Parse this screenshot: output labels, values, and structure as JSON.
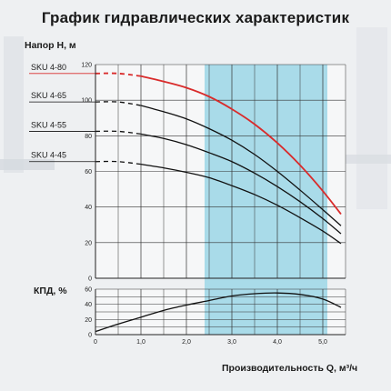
{
  "title": "График гидравлических характеристик",
  "chart_data": [
    {
      "type": "line",
      "ylabel": "Напор H, м",
      "xlabel": "Производительность Q, м³/ч",
      "xlim": [
        0,
        5.5
      ],
      "ylim": [
        0,
        120
      ],
      "x_ticks": [
        "0",
        "1,0",
        "2,0",
        "3,0",
        "4,0",
        "5,0"
      ],
      "y_ticks": [
        "0",
        "20",
        "40",
        "60",
        "80",
        "100",
        "120"
      ],
      "highlight_band": [
        2.4,
        5.1
      ],
      "highlight_color": "#a9dbe9",
      "grid": true,
      "series": [
        {
          "name": "SKU 4-80",
          "color": "#d92b2b",
          "x": [
            0.0,
            0.5,
            1.0,
            1.5,
            2.0,
            2.5,
            3.0,
            3.5,
            4.0,
            4.5,
            5.0,
            5.4
          ],
          "y": [
            115.0,
            115.0,
            113.5,
            110.5,
            107.0,
            102.0,
            95.0,
            86.5,
            76.0,
            63.5,
            49.0,
            36.0
          ],
          "dashed_until": 1.0
        },
        {
          "name": "SKU 4-65",
          "color": "#111111",
          "x": [
            0.0,
            0.5,
            1.0,
            1.5,
            2.0,
            2.5,
            3.0,
            3.5,
            4.0,
            4.5,
            5.0,
            5.4
          ],
          "y": [
            99.0,
            99.0,
            97.0,
            93.5,
            89.5,
            84.0,
            77.5,
            69.5,
            60.0,
            49.5,
            38.5,
            29.5
          ],
          "dashed_until": 1.0
        },
        {
          "name": "SKU 4-55",
          "color": "#111111",
          "x": [
            0.0,
            0.5,
            1.0,
            1.5,
            2.0,
            2.5,
            3.0,
            3.5,
            4.0,
            4.5,
            5.0,
            5.4
          ],
          "y": [
            82.5,
            82.5,
            81.0,
            78.5,
            75.0,
            70.5,
            65.5,
            59.0,
            51.5,
            43.0,
            33.5,
            25.0
          ],
          "dashed_until": 1.0
        },
        {
          "name": "SKU 4-45",
          "color": "#111111",
          "x": [
            0.0,
            0.5,
            1.0,
            1.5,
            2.0,
            2.5,
            3.0,
            3.5,
            4.0,
            4.5,
            5.0,
            5.4
          ],
          "y": [
            65.5,
            65.5,
            64.0,
            62.0,
            59.5,
            56.5,
            52.0,
            47.0,
            41.0,
            34.0,
            26.5,
            19.5
          ],
          "dashed_until": 1.0
        }
      ]
    },
    {
      "type": "line",
      "ylabel": "КПД, %",
      "xlim": [
        0,
        5.5
      ],
      "ylim": [
        0,
        60
      ],
      "x_ticks": [
        "0",
        "1,0",
        "2,0",
        "3,0",
        "4,0",
        "5,0"
      ],
      "y_ticks": [
        "0",
        "20",
        "40",
        "60"
      ],
      "grid": true,
      "series": [
        {
          "name": "",
          "color": "#111111",
          "x": [
            0.0,
            0.5,
            1.0,
            1.5,
            2.0,
            2.5,
            3.0,
            3.5,
            4.0,
            4.5,
            5.0,
            5.4
          ],
          "y": [
            4,
            14,
            23,
            32,
            39,
            45,
            51,
            54,
            55,
            53,
            47,
            36
          ]
        }
      ]
    }
  ]
}
